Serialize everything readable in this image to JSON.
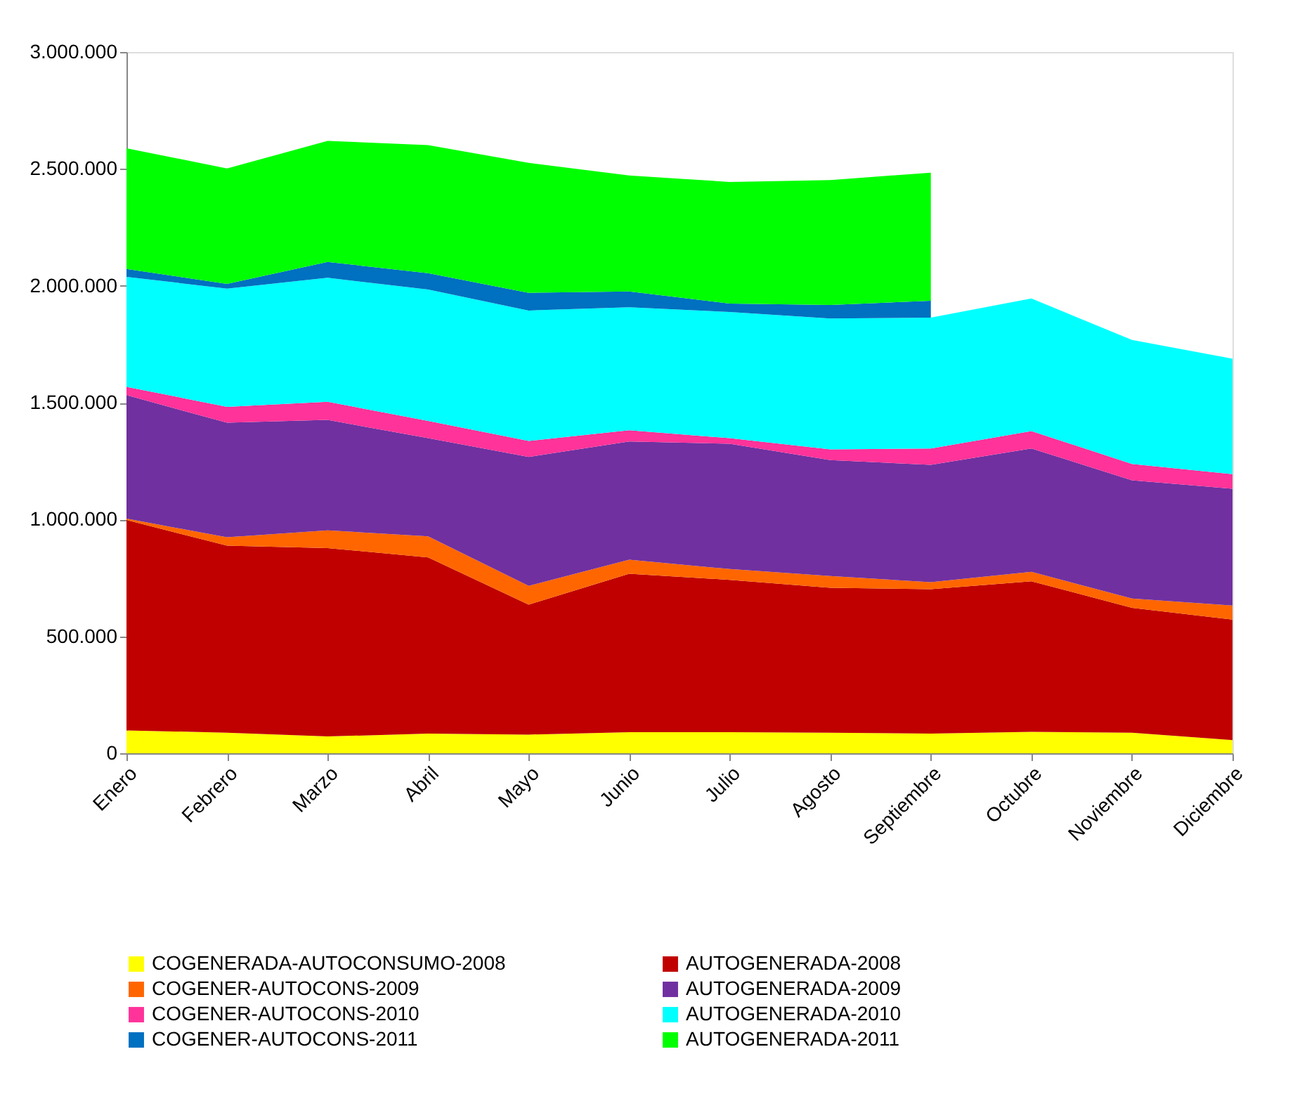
{
  "chart_data": {
    "type": "area",
    "stacked": true,
    "legend": "bottom",
    "grid": false,
    "categories": [
      "Enero",
      "Febrero",
      "Marzo",
      "Abril",
      "Mayo",
      "Junio",
      "Julio",
      "Agosto",
      "Septiembre",
      "Octubre",
      "Noviembre",
      "Diciembre"
    ],
    "ylim": [
      0,
      3000000
    ],
    "yticks": [
      {
        "value": 0,
        "label": "0"
      },
      {
        "value": 500000,
        "label": "500.000"
      },
      {
        "value": 1000000,
        "label": "1.000.000"
      },
      {
        "value": 1500000,
        "label": "1.500.000"
      },
      {
        "value": 2000000,
        "label": "2.000.000"
      },
      {
        "value": 2500000,
        "label": "2.500.000"
      },
      {
        "value": 3000000,
        "label": "3.000.000"
      }
    ],
    "series": [
      {
        "name": "COGENERADA-AUTOCONSUMO-2008",
        "color": "#ffff00",
        "values": [
          98000,
          88000,
          72000,
          84000,
          80000,
          90000,
          90000,
          88000,
          84000,
          92000,
          88000,
          56000
        ]
      },
      {
        "name": "AUTOGENERADA-2008",
        "color": "#c00000",
        "values": [
          900000,
          800000,
          806000,
          754000,
          556000,
          678000,
          652000,
          620000,
          618000,
          644000,
          534000,
          516000
        ]
      },
      {
        "name": "COGENER-AUTOCONS-2009",
        "color": "#ff6600",
        "values": [
          6000,
          36000,
          76000,
          90000,
          80000,
          60000,
          46000,
          50000,
          30000,
          40000,
          40000,
          60000
        ]
      },
      {
        "name": "AUTOGENERADA-2009",
        "color": "#7030a0",
        "values": [
          528000,
          490000,
          472000,
          420000,
          552000,
          506000,
          536000,
          496000,
          502000,
          528000,
          506000,
          500000
        ]
      },
      {
        "name": "COGENER-AUTOCONS-2010",
        "color": "#ff3399",
        "values": [
          36000,
          68000,
          78000,
          74000,
          68000,
          48000,
          24000,
          46000,
          70000,
          74000,
          70000,
          62000
        ]
      },
      {
        "name": "AUTOGENERADA-2010",
        "color": "#00ffff",
        "values": [
          470000,
          506000,
          530000,
          562000,
          558000,
          526000,
          540000,
          560000,
          560000,
          568000,
          530000,
          494000
        ]
      },
      {
        "name": "COGENER-AUTOCONS-2011",
        "color": "#0070c0",
        "values": [
          34000,
          20000,
          68000,
          70000,
          76000,
          68000,
          36000,
          58000,
          72000,
          null,
          null,
          null
        ]
      },
      {
        "name": "AUTOGENERADA-2011",
        "color": "#00ff00",
        "values": [
          516000,
          494000,
          518000,
          548000,
          556000,
          496000,
          520000,
          534000,
          548000,
          null,
          null,
          null
        ]
      }
    ]
  }
}
